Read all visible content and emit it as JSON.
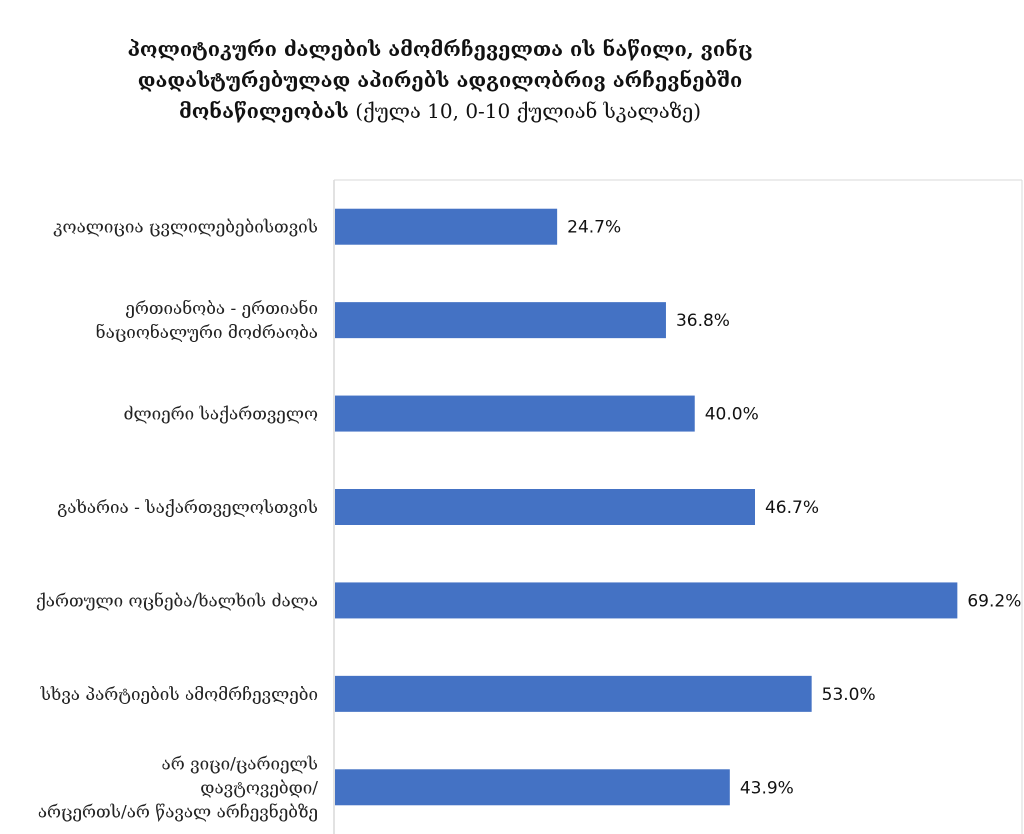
{
  "title": {
    "line1": "პოლიტიკური ძალების ამომრჩეველთა ის ნაწილი, ვინც",
    "line2": "დადასტურებულად აპირებს ადგილობრივ არჩევნებში",
    "line3_bold": "მონაწილეობას",
    "line3_rest": " (ქულა 10, 0-10 ქულიან სკალაზე)"
  },
  "chart_data": {
    "type": "bar",
    "orientation": "horizontal",
    "categories": [
      [
        "კოალიცია ცვლილებებისთვის"
      ],
      [
        "ერთიანობა - ერთიანი",
        "ნაციონალური მოძრაობა"
      ],
      [
        "ძლიერი საქართველო"
      ],
      [
        "გახარია - საქართველოსთვის"
      ],
      [
        "ქართული ოცნება/ხალხის ძალა"
      ],
      [
        "სხვა პარტიების ამომრჩევლები"
      ],
      [
        "არ ვიცი/ცარიელს",
        "დავტოვებდი/",
        "არცერთს/არ წავალ არჩევნებზე"
      ]
    ],
    "values": [
      24.7,
      36.8,
      40.0,
      46.7,
      69.2,
      53.0,
      43.9
    ],
    "value_labels": [
      "24.7%",
      "36.8%",
      "40.0%",
      "46.7%",
      "69.2%",
      "53.0%",
      "43.9%"
    ],
    "xlim": [
      0,
      76.5
    ],
    "grid": false,
    "bar_color": "#4472C4",
    "axis_color": "#d9d9d9"
  }
}
